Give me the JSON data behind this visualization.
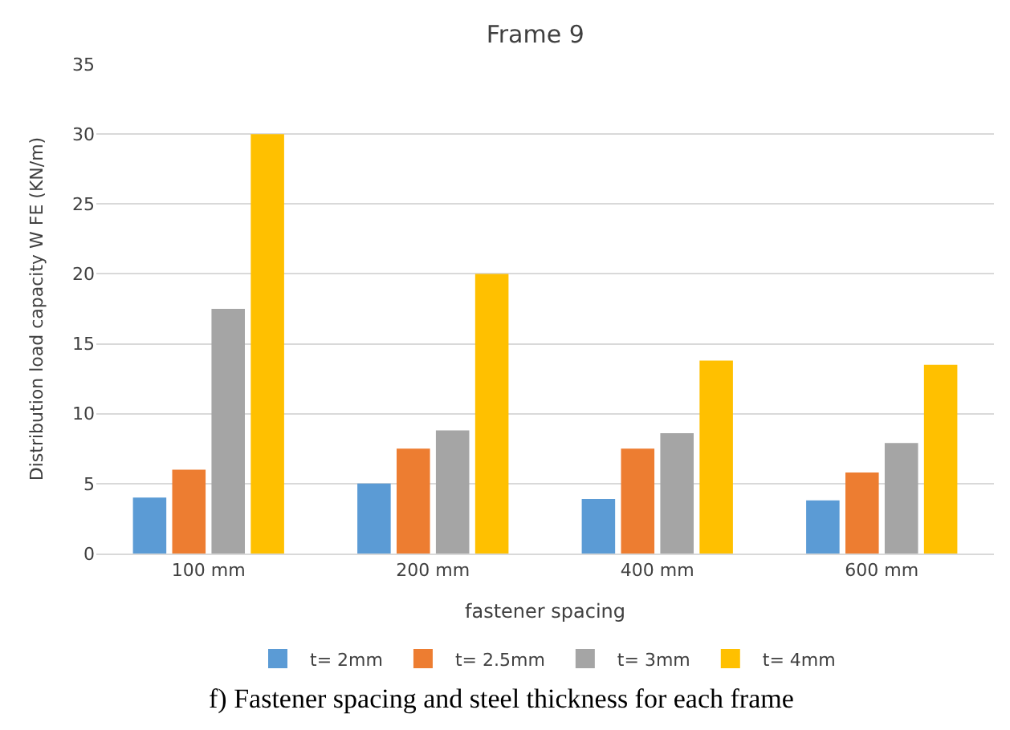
{
  "chart_data": {
    "type": "bar",
    "title": "Frame 9",
    "xlabel": "fastener spacing",
    "ylabel": "Distribution load capacity W FE (KN/m)",
    "categories": [
      "100 mm",
      "200 mm",
      "400 mm",
      "600 mm"
    ],
    "series": [
      {
        "name": "t= 2mm",
        "color": "#5b9bd5",
        "values": [
          4,
          5,
          3.9,
          3.8
        ]
      },
      {
        "name": "t= 2.5mm",
        "color": "#ed7d31",
        "values": [
          6,
          7.5,
          7.5,
          5.8
        ]
      },
      {
        "name": "t= 3mm",
        "color": "#a5a5a5",
        "values": [
          17.5,
          8.8,
          8.6,
          7.9
        ]
      },
      {
        "name": "t= 4mm",
        "color": "#ffc000",
        "values": [
          30,
          20,
          13.8,
          13.5
        ]
      }
    ],
    "ylim": [
      0,
      35
    ],
    "yticks": [
      0,
      5,
      10,
      15,
      20,
      25,
      30,
      35
    ],
    "grid": "y",
    "legend": "bottom",
    "annotations": [
      "f) Fastener spacing and steel thickness for each frame"
    ]
  }
}
